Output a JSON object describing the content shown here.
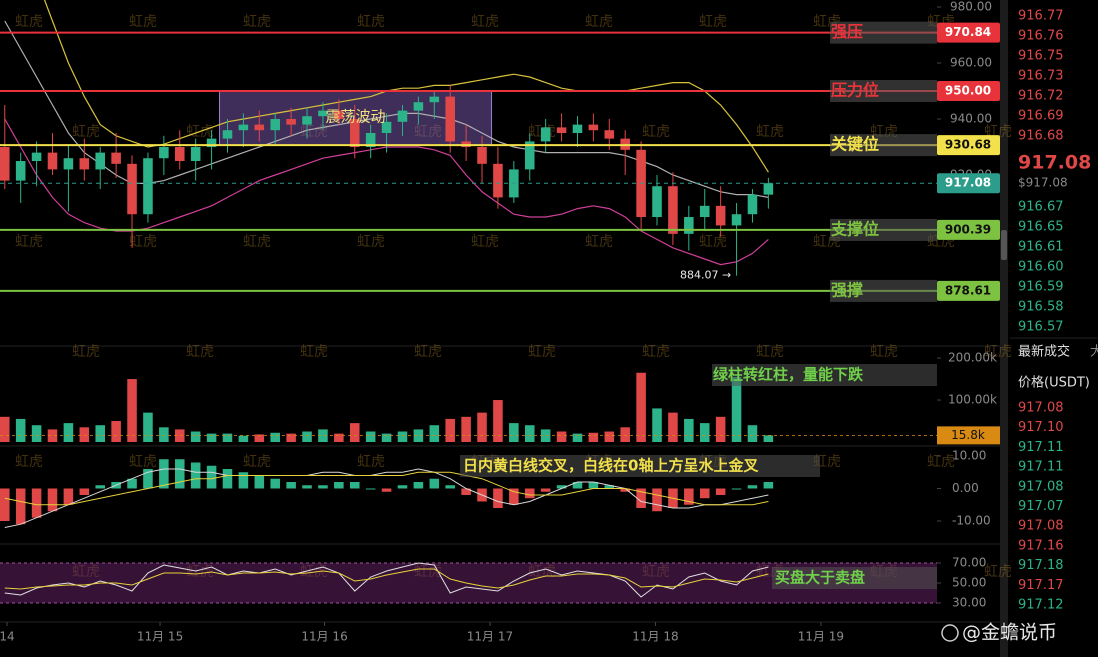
{
  "chart_data": {
    "type": "candlestick",
    "xlim": [
      -0.3,
      58.6
    ],
    "xticks": [
      {
        "value": 0.14,
        "label": "14"
      },
      {
        "value": 9.76,
        "label": "11月 15"
      },
      {
        "value": 20.1,
        "label": "11月 16"
      },
      {
        "value": 30.5,
        "label": "11月 17"
      },
      {
        "value": 40.9,
        "label": "11月 18"
      },
      {
        "value": 51.3,
        "label": "11月 19"
      }
    ],
    "ylim": [
      859.3,
      982.5
    ],
    "yticks": [
      {
        "value": 980,
        "label": "980.00"
      },
      {
        "value": 960,
        "label": "960.00"
      },
      {
        "value": 940,
        "label": "940.00"
      },
      {
        "value": 920,
        "label": "920.00"
      }
    ],
    "up_color": "#2db38a",
    "down_color": "#e04848",
    "candles": [
      {
        "o": 930,
        "h": 945,
        "l": 915,
        "c": 918
      },
      {
        "o": 918,
        "h": 928,
        "l": 910,
        "c": 925
      },
      {
        "o": 925,
        "h": 932,
        "l": 916,
        "c": 928
      },
      {
        "o": 928,
        "h": 935,
        "l": 920,
        "c": 922
      },
      {
        "o": 922,
        "h": 931,
        "l": 907,
        "c": 926
      },
      {
        "o": 926,
        "h": 933,
        "l": 918,
        "c": 922
      },
      {
        "o": 922,
        "h": 930,
        "l": 915,
        "c": 928
      },
      {
        "o": 928,
        "h": 935,
        "l": 919,
        "c": 924
      },
      {
        "o": 924,
        "h": 927,
        "l": 894,
        "c": 906
      },
      {
        "o": 906,
        "h": 928,
        "l": 903,
        "c": 926
      },
      {
        "o": 926,
        "h": 934,
        "l": 920,
        "c": 930
      },
      {
        "o": 930,
        "h": 936,
        "l": 922,
        "c": 925
      },
      {
        "o": 925,
        "h": 933,
        "l": 918,
        "c": 930
      },
      {
        "o": 930,
        "h": 936,
        "l": 922,
        "c": 933
      },
      {
        "o": 933,
        "h": 940,
        "l": 928,
        "c": 936
      },
      {
        "o": 936,
        "h": 942,
        "l": 930,
        "c": 938
      },
      {
        "o": 938,
        "h": 943,
        "l": 932,
        "c": 936
      },
      {
        "o": 936,
        "h": 942,
        "l": 931,
        "c": 940
      },
      {
        "o": 940,
        "h": 944,
        "l": 934,
        "c": 938
      },
      {
        "o": 938,
        "h": 944,
        "l": 933,
        "c": 941
      },
      {
        "o": 941,
        "h": 946,
        "l": 936,
        "c": 943
      },
      {
        "o": 943,
        "h": 947,
        "l": 938,
        "c": 940
      },
      {
        "o": 940,
        "h": 945,
        "l": 926,
        "c": 930
      },
      {
        "o": 930,
        "h": 938,
        "l": 926,
        "c": 935
      },
      {
        "o": 935,
        "h": 942,
        "l": 928,
        "c": 939
      },
      {
        "o": 939,
        "h": 945,
        "l": 934,
        "c": 943
      },
      {
        "o": 943,
        "h": 948,
        "l": 938,
        "c": 946
      },
      {
        "o": 946,
        "h": 950,
        "l": 940,
        "c": 948
      },
      {
        "o": 948,
        "h": 952,
        "l": 928,
        "c": 932
      },
      {
        "o": 932,
        "h": 938,
        "l": 925,
        "c": 930
      },
      {
        "o": 930,
        "h": 934,
        "l": 917,
        "c": 924
      },
      {
        "o": 924,
        "h": 930,
        "l": 908,
        "c": 912
      },
      {
        "o": 912,
        "h": 925,
        "l": 910,
        "c": 922
      },
      {
        "o": 922,
        "h": 935,
        "l": 918,
        "c": 932
      },
      {
        "o": 932,
        "h": 940,
        "l": 928,
        "c": 937
      },
      {
        "o": 937,
        "h": 942,
        "l": 932,
        "c": 935
      },
      {
        "o": 935,
        "h": 941,
        "l": 930,
        "c": 938
      },
      {
        "o": 938,
        "h": 942,
        "l": 932,
        "c": 936
      },
      {
        "o": 936,
        "h": 940,
        "l": 929,
        "c": 933
      },
      {
        "o": 933,
        "h": 936,
        "l": 920,
        "c": 929
      },
      {
        "o": 929,
        "h": 932,
        "l": 900,
        "c": 905
      },
      {
        "o": 905,
        "h": 920,
        "l": 902,
        "c": 916
      },
      {
        "o": 916,
        "h": 921,
        "l": 895,
        "c": 899
      },
      {
        "o": 899,
        "h": 909,
        "l": 893,
        "c": 905
      },
      {
        "o": 905,
        "h": 915,
        "l": 900,
        "c": 909
      },
      {
        "o": 909,
        "h": 916,
        "l": 898,
        "c": 902
      },
      {
        "o": 902,
        "h": 910,
        "l": 884.07,
        "c": 906
      },
      {
        "o": 906,
        "h": 915,
        "l": 903,
        "c": 913
      },
      {
        "o": 913,
        "h": 919,
        "l": 908,
        "c": 917.08
      }
    ],
    "bands": [
      {
        "color": "#d8c23a",
        "values": [
          1010,
          1000,
          990,
          975,
          960,
          948,
          938,
          934,
          932,
          930,
          931,
          933,
          935,
          937,
          939,
          940,
          941,
          942,
          943,
          944,
          945,
          946,
          947,
          948,
          950,
          951,
          951,
          952,
          952,
          953,
          954,
          955,
          956,
          955,
          953,
          951,
          950,
          950,
          950,
          950,
          951,
          952,
          953,
          953,
          950,
          945,
          938,
          930,
          921
        ]
      },
      {
        "color": "#b0b0b0",
        "values": [
          975,
          965,
          955,
          945,
          935,
          928,
          924,
          920,
          917,
          917,
          918,
          920,
          922,
          924,
          926,
          928,
          930,
          932,
          934,
          936,
          937,
          938,
          939,
          940,
          941,
          942,
          942,
          941,
          940,
          938,
          935,
          932,
          930,
          929,
          928,
          928,
          928,
          928,
          928,
          927,
          925,
          923,
          920,
          918,
          916,
          914,
          913,
          913,
          912
        ]
      },
      {
        "color": "#d0409a",
        "values": [
          940,
          930,
          920,
          912,
          906,
          903,
          901,
          900,
          900,
          901,
          903,
          905,
          907,
          909,
          912,
          915,
          918,
          920,
          922,
          924,
          926,
          927,
          928,
          929,
          930,
          930,
          930,
          929,
          927,
          920,
          914,
          910,
          906,
          905,
          905,
          906,
          908,
          909,
          908,
          905,
          900,
          897,
          894,
          892,
          890,
          888,
          889,
          892,
          897
        ]
      }
    ],
    "levels": [
      {
        "name": "强压",
        "value": 970.84,
        "label": "970.84",
        "color": "#e8333a",
        "text_color": "#ffffff"
      },
      {
        "name": "压力位",
        "value": 950,
        "label": "950.00",
        "color": "#e8333a",
        "text_color": "#ffffff"
      },
      {
        "name": "关键位",
        "value": 930.68,
        "label": "930.68",
        "color": "#f2e14a",
        "text_color": "#111111"
      },
      {
        "value": 917.08,
        "label": "917.08",
        "color": "#2b9d8a",
        "text_color": "#ffffff",
        "style": "dashed"
      },
      {
        "name": "支撑位",
        "value": 900.39,
        "label": "900.39",
        "color": "#7ec242",
        "text_color": "#111111"
      },
      {
        "name": "强撑",
        "value": 878.61,
        "label": "878.61",
        "color": "#7ec242",
        "text_color": "#111111"
      }
    ],
    "box": {
      "label": "震荡波动",
      "x": [
        13.5,
        30.6
      ],
      "y": [
        930.68,
        950
      ]
    },
    "low_note": {
      "label": "884.07 →",
      "value": 884.07,
      "x": 45.9
    },
    "volume": {
      "ylim": [
        0,
        224000
      ],
      "yticks": [
        {
          "value": 200000,
          "label": "200.00k"
        },
        {
          "value": 100000,
          "label": "100.00k"
        }
      ],
      "values": [
        60000,
        55000,
        40000,
        30000,
        45000,
        35000,
        40000,
        50000,
        150000,
        70000,
        35000,
        30000,
        25000,
        20000,
        20000,
        15000,
        18000,
        22000,
        20000,
        25000,
        30000,
        20000,
        45000,
        25000,
        20000,
        25000,
        30000,
        40000,
        55000,
        60000,
        70000,
        100000,
        45000,
        40000,
        30000,
        25000,
        20000,
        22000,
        25000,
        35000,
        165000,
        80000,
        70000,
        55000,
        45000,
        60000,
        155000,
        40000,
        15800
      ],
      "current": {
        "value": 15800,
        "label": "15.8k",
        "color": "#d88a12"
      },
      "note": "绿柱转红柱，量能下跌"
    },
    "macd": {
      "ylim": [
        -15.85,
        12.46
      ],
      "yticks": [
        {
          "value": 10,
          "label": "10.00"
        },
        {
          "value": 0,
          "label": "0.00"
        },
        {
          "value": -10,
          "label": "-10.00"
        }
      ],
      "hist": [
        -10,
        -11,
        -9,
        -7,
        -5,
        -2,
        1,
        2,
        3,
        6,
        9,
        9,
        8,
        7,
        6,
        5,
        4,
        3,
        2,
        1,
        1,
        2,
        2,
        0,
        -1,
        1,
        2,
        3,
        1,
        -2,
        -4,
        -6,
        -5,
        -3,
        -1,
        1,
        2,
        2,
        1,
        -1,
        -6,
        -7,
        -6,
        -5,
        -3,
        -2,
        0,
        1,
        2
      ],
      "lines": [
        {
          "color": "#d8d8d8",
          "values": [
            -12,
            -11,
            -9,
            -7,
            -5,
            -3,
            -1,
            1,
            3,
            5,
            6,
            6,
            5,
            5,
            4,
            4,
            4,
            4,
            4,
            4,
            5,
            5,
            4,
            4,
            5,
            5,
            6,
            5,
            3,
            0,
            -2,
            -4,
            -5,
            -4,
            -2,
            0,
            2,
            2,
            1,
            0,
            -4,
            -5,
            -6,
            -6,
            -5,
            -5,
            -4,
            -3,
            -2
          ]
        },
        {
          "color": "#e6d23a",
          "values": [
            -3,
            -4,
            -5,
            -5,
            -5,
            -4,
            -3,
            -2,
            -1,
            0,
            1,
            2,
            3,
            3,
            4,
            4,
            4,
            4,
            4,
            4,
            4,
            4,
            4,
            4,
            4,
            4,
            5,
            5,
            5,
            4,
            3,
            1,
            -1,
            -2,
            -2,
            -2,
            -1,
            0,
            0,
            0,
            -1,
            -2,
            -3,
            -4,
            -5,
            -5,
            -5,
            -5,
            -4
          ]
        }
      ],
      "note": "日内黄白线交叉，白线在0轴上方呈水上金叉"
    },
    "osc": {
      "ylim": [
        13,
        85
      ],
      "yticks": [
        {
          "value": 70,
          "label": "70.00"
        },
        {
          "value": 50,
          "label": "50.00"
        },
        {
          "value": 30,
          "label": "30.00"
        }
      ],
      "band": [
        30,
        70
      ],
      "lines": [
        {
          "color": "#e0e0e0",
          "values": [
            40,
            38,
            45,
            48,
            50,
            46,
            52,
            48,
            42,
            60,
            68,
            65,
            62,
            66,
            58,
            62,
            60,
            64,
            58,
            62,
            66,
            60,
            42,
            56,
            62,
            66,
            70,
            68,
            40,
            46,
            44,
            42,
            52,
            60,
            64,
            58,
            62,
            60,
            58,
            52,
            36,
            48,
            44,
            56,
            60,
            52,
            48,
            62,
            66
          ]
        },
        {
          "color": "#e6d23a",
          "values": [
            45,
            44,
            46,
            47,
            48,
            48,
            50,
            50,
            48,
            54,
            60,
            60,
            59,
            61,
            58,
            60,
            60,
            61,
            59,
            60,
            62,
            60,
            52,
            54,
            58,
            61,
            64,
            64,
            54,
            50,
            47,
            45,
            48,
            53,
            57,
            57,
            59,
            59,
            58,
            55,
            46,
            47,
            46,
            50,
            54,
            53,
            51,
            55,
            59
          ]
        }
      ],
      "note": "买盘大于卖盘"
    }
  },
  "orderbook": {
    "asks": [
      "916.77",
      "916.76",
      "916.75",
      "916.73",
      "916.72",
      "916.69",
      "916.68"
    ],
    "last": "917.08",
    "last_usd": "$917.08",
    "bids": [
      "916.67",
      "916.65",
      "916.61",
      "916.60",
      "916.59",
      "916.58",
      "916.57"
    ]
  },
  "trades": {
    "title": "最新成交",
    "cut": "大",
    "header": "价格(USDT)",
    "rows": [
      {
        "price": "917.08",
        "color": "#e04848"
      },
      {
        "price": "917.10",
        "color": "#e04848"
      },
      {
        "price": "917.11",
        "color": "#2db38a"
      },
      {
        "price": "917.11",
        "color": "#2db38a"
      },
      {
        "price": "917.08",
        "color": "#2db38a"
      },
      {
        "price": "917.07",
        "color": "#2db38a"
      },
      {
        "price": "917.08",
        "color": "#e04848"
      },
      {
        "price": "917.16",
        "color": "#e04848"
      },
      {
        "price": "917.18",
        "color": "#2db38a"
      },
      {
        "price": "917.17",
        "color": "#e04848"
      },
      {
        "price": "917.12",
        "color": "#2db38a"
      }
    ]
  },
  "watermark": "虹虎",
  "credit": "@金蟾说币"
}
